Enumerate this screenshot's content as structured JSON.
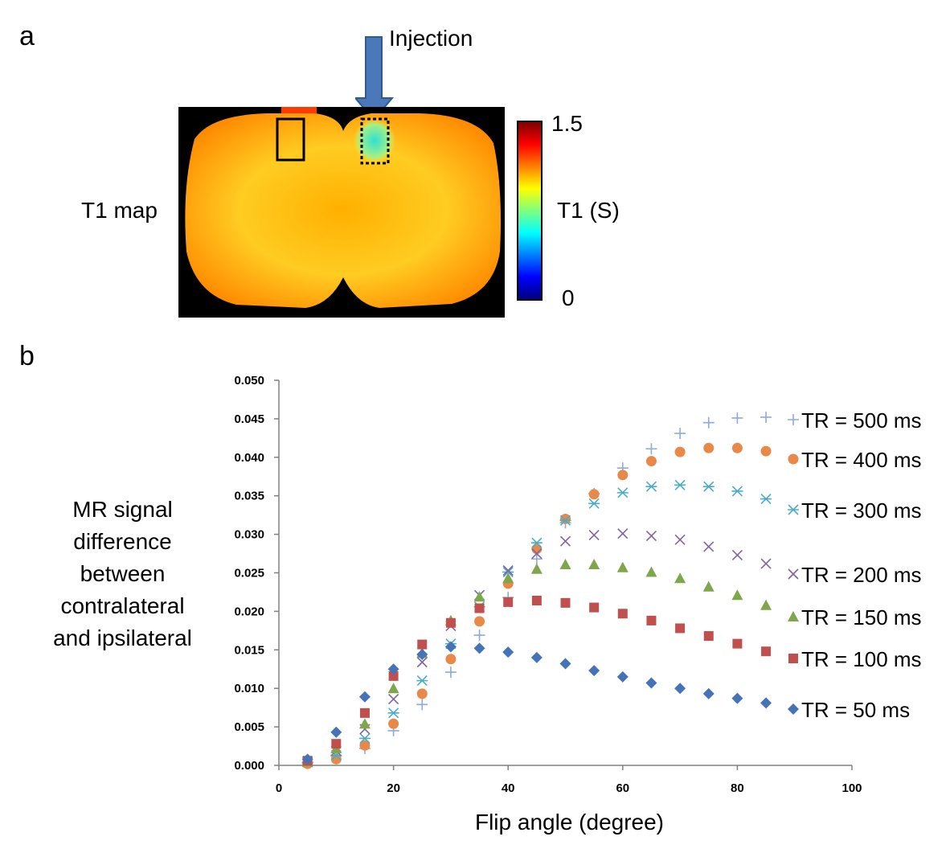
{
  "panel_a": {
    "label": "a",
    "injection_label": "Injection",
    "map_label": "T1 map",
    "colorbar": {
      "max_label": "1.5",
      "min_label": "0",
      "unit_label": "T1 (S)",
      "colors": [
        "#00007f",
        "#0000ff",
        "#007fff",
        "#00ffff",
        "#7fff7f",
        "#ffff00",
        "#ff7f00",
        "#ff0000",
        "#7f0000"
      ]
    },
    "arrow_color": "#4a78b8"
  },
  "panel_b": {
    "label": "b",
    "ylabel_lines": [
      "MR signal",
      "difference",
      "between",
      "contralateral",
      "and ipsilateral"
    ]
  },
  "chart_data": {
    "type": "scatter",
    "xlabel": "Flip angle (degree)",
    "ylabel": "MR signal difference between contralateral and ipsilateral",
    "xlim": [
      0,
      100
    ],
    "ylim": [
      0,
      0.05
    ],
    "xticks": [
      "0",
      "20",
      "40",
      "60",
      "80",
      "100"
    ],
    "yticks": [
      "0.000",
      "0.005",
      "0.010",
      "0.015",
      "0.020",
      "0.025",
      "0.030",
      "0.035",
      "0.040",
      "0.045",
      "0.050"
    ],
    "grid": false,
    "legend_placement": "right",
    "x": [
      5,
      10,
      15,
      20,
      25,
      30,
      35,
      40,
      45,
      50,
      55,
      60,
      65,
      70,
      75,
      80,
      85
    ],
    "series": [
      {
        "name": "TR = 500 ms",
        "marker": "plus",
        "color": "#8fa9dc",
        "values": [
          0.0003,
          0.0012,
          0.0022,
          0.0045,
          0.0079,
          0.0121,
          0.0169,
          0.0218,
          0.0268,
          0.0315,
          0.0353,
          0.0386,
          0.0411,
          0.0431,
          0.0445,
          0.0451,
          0.0452
        ]
      },
      {
        "name": "TR = 400 ms",
        "marker": "circle",
        "color": "#e8894a",
        "values": [
          0.0002,
          0.0008,
          0.0026,
          0.0054,
          0.0093,
          0.0138,
          0.0187,
          0.0236,
          0.0281,
          0.032,
          0.0352,
          0.0377,
          0.0395,
          0.0407,
          0.0412,
          0.0412,
          0.0408
        ]
      },
      {
        "name": "TR = 300 ms",
        "marker": "asterisk",
        "color": "#4bacc6",
        "values": [
          0.0004,
          0.0013,
          0.0035,
          0.0068,
          0.011,
          0.0158,
          0.0206,
          0.0251,
          0.0289,
          0.0318,
          0.034,
          0.0354,
          0.0362,
          0.0364,
          0.0362,
          0.0356,
          0.0346
        ]
      },
      {
        "name": "TR = 200 ms",
        "marker": "x",
        "color": "#8064a2",
        "values": [
          0.0005,
          0.0019,
          0.0047,
          0.0086,
          0.0134,
          0.0181,
          0.0221,
          0.0253,
          0.0275,
          0.0291,
          0.0299,
          0.0301,
          0.0298,
          0.0293,
          0.0284,
          0.0273,
          0.0262
        ]
      },
      {
        "name": "TR = 150 ms",
        "marker": "triangle",
        "color": "#7ea64a",
        "values": [
          0.0005,
          0.0022,
          0.0054,
          0.01,
          0.0146,
          0.0188,
          0.0219,
          0.0243,
          0.0255,
          0.0261,
          0.0261,
          0.0257,
          0.0251,
          0.0243,
          0.0232,
          0.0221,
          0.0208
        ]
      },
      {
        "name": "TR = 100 ms",
        "marker": "square",
        "color": "#c0504d",
        "values": [
          0.0006,
          0.0028,
          0.0068,
          0.0116,
          0.0157,
          0.0185,
          0.0204,
          0.0212,
          0.0214,
          0.0211,
          0.0205,
          0.0197,
          0.0188,
          0.0178,
          0.0168,
          0.0158,
          0.0148
        ]
      },
      {
        "name": "TR = 50 ms",
        "marker": "diamond",
        "color": "#4573b8",
        "values": [
          0.0008,
          0.0043,
          0.0089,
          0.0125,
          0.0144,
          0.0154,
          0.0152,
          0.0147,
          0.014,
          0.0132,
          0.0123,
          0.0115,
          0.0107,
          0.01,
          0.0093,
          0.0087,
          0.0081
        ]
      }
    ]
  }
}
